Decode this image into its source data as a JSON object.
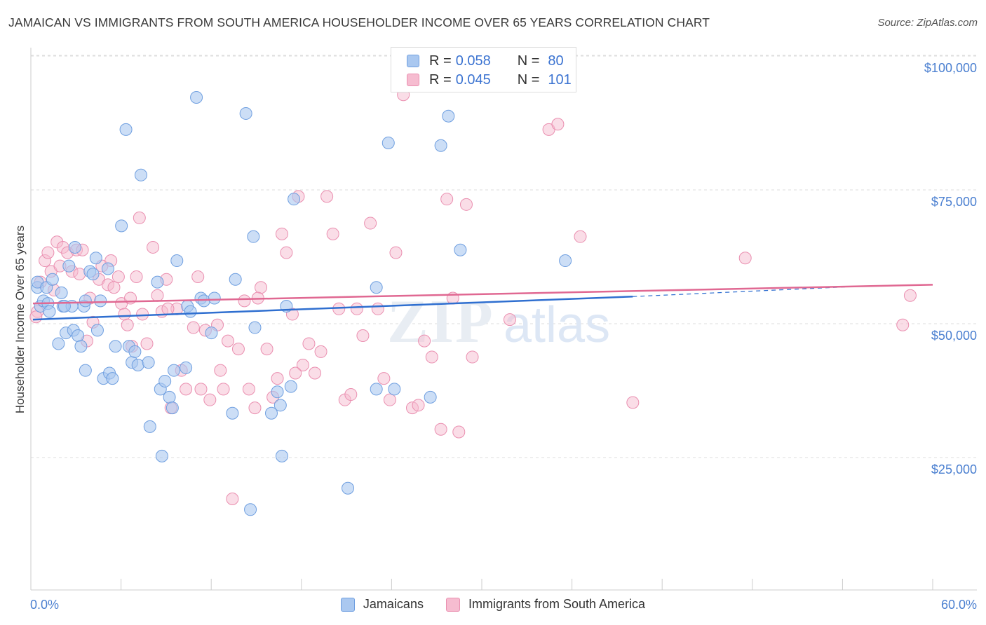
{
  "header": {
    "title": "JAMAICAN VS IMMIGRANTS FROM SOUTH AMERICA HOUSEHOLDER INCOME OVER 65 YEARS CORRELATION CHART",
    "source": "Source: ZipAtlas.com"
  },
  "legend": {
    "r_label": "R =",
    "n_label": "N =",
    "jamaicans": {
      "r": "0.058",
      "n": "80"
    },
    "immigrants": {
      "r": "0.045",
      "n": "101"
    }
  },
  "watermark": {
    "zip": "ZIP",
    "atlas": "atlas"
  },
  "bottom_legend": {
    "jamaicans": "Jamaicans",
    "immigrants": "Immigrants from South America"
  },
  "colors": {
    "blue_fill": "#aac8f0",
    "blue_stroke": "#6f9fe0",
    "blue_line": "#2f6fd0",
    "pink_fill": "#f6bcd0",
    "pink_stroke": "#ea8fb0",
    "pink_line": "#e06892",
    "tick_text": "#4a7fd0",
    "grid": "#dddddd"
  },
  "chart_data": {
    "type": "scatter",
    "title": "JAMAICAN VS IMMIGRANTS FROM SOUTH AMERICA HOUSEHOLDER INCOME OVER 65 YEARS CORRELATION CHART",
    "xlabel": "",
    "ylabel": "Householder Income Over 65 years",
    "xlim": [
      0,
      60
    ],
    "ylim": [
      0,
      105000
    ],
    "x_tick_labels": [
      "0.0%",
      "60.0%"
    ],
    "y_ticks": [
      25000,
      50000,
      75000,
      100000
    ],
    "y_tick_labels": [
      "$25,000",
      "$50,000",
      "$75,000",
      "$100,000"
    ],
    "grid": "horizontal dashed",
    "series": [
      {
        "name": "Jamaicans",
        "r": 0.058,
        "n": 80,
        "trend": {
          "x": [
            0,
            40
          ],
          "y": [
            53000,
            57300
          ],
          "dashed_to": [
            55,
            59200
          ]
        },
        "points": [
          [
            0.3,
            59000
          ],
          [
            0.3,
            60000
          ],
          [
            0.5,
            55500
          ],
          [
            0.7,
            56500
          ],
          [
            0.9,
            59000
          ],
          [
            1.0,
            56000
          ],
          [
            1.3,
            60500
          ],
          [
            1.7,
            48500
          ],
          [
            1.9,
            58000
          ],
          [
            2.0,
            55500
          ],
          [
            2.2,
            50500
          ],
          [
            2.4,
            63000
          ],
          [
            2.6,
            55500
          ],
          [
            2.7,
            51000
          ],
          [
            2.8,
            66500
          ],
          [
            3.0,
            50000
          ],
          [
            3.2,
            48000
          ],
          [
            3.4,
            55500
          ],
          [
            3.5,
            43500
          ],
          [
            3.8,
            62000
          ],
          [
            4.0,
            61500
          ],
          [
            4.2,
            64500
          ],
          [
            4.3,
            51000
          ],
          [
            4.5,
            56500
          ],
          [
            4.7,
            42000
          ],
          [
            5.0,
            62500
          ],
          [
            5.1,
            43000
          ],
          [
            5.3,
            42000
          ],
          [
            5.5,
            48000
          ],
          [
            5.9,
            70500
          ],
          [
            6.4,
            48000
          ],
          [
            6.6,
            45000
          ],
          [
            6.8,
            47000
          ],
          [
            7.0,
            44500
          ],
          [
            7.2,
            80000
          ],
          [
            7.7,
            45000
          ],
          [
            7.8,
            33000
          ],
          [
            8.3,
            60000
          ],
          [
            8.5,
            40000
          ],
          [
            8.6,
            27500
          ],
          [
            8.8,
            41500
          ],
          [
            9.1,
            38500
          ],
          [
            9.3,
            36500
          ],
          [
            9.4,
            43500
          ],
          [
            9.6,
            64000
          ],
          [
            10.2,
            44000
          ],
          [
            10.3,
            55500
          ],
          [
            10.5,
            54500
          ],
          [
            10.9,
            94500
          ],
          [
            11.2,
            57000
          ],
          [
            11.4,
            56500
          ],
          [
            11.9,
            50500
          ],
          [
            12.1,
            57000
          ],
          [
            13.3,
            35500
          ],
          [
            13.5,
            60500
          ],
          [
            14.2,
            91500
          ],
          [
            14.7,
            68500
          ],
          [
            14.8,
            51500
          ],
          [
            15.9,
            35500
          ],
          [
            16.3,
            39500
          ],
          [
            16.5,
            37000
          ],
          [
            16.6,
            27500
          ],
          [
            16.9,
            55500
          ],
          [
            17.2,
            40500
          ],
          [
            17.4,
            75500
          ],
          [
            21.0,
            21500
          ],
          [
            22.9,
            59000
          ],
          [
            22.9,
            40000
          ],
          [
            23.7,
            86000
          ],
          [
            24.1,
            40000
          ],
          [
            26.5,
            38500
          ],
          [
            27.2,
            85500
          ],
          [
            27.7,
            91000
          ],
          [
            28.5,
            66000
          ],
          [
            35.5,
            64000
          ],
          [
            14.5,
            17500
          ],
          [
            6.2,
            88500
          ],
          [
            3.5,
            56500
          ],
          [
            2.1,
            55500
          ],
          [
            1.1,
            54500
          ]
        ]
      },
      {
        "name": "Immigrants from South America",
        "r": 0.045,
        "n": 101,
        "trend": {
          "x": [
            0,
            60
          ],
          "y": [
            56000,
            59500
          ]
        },
        "points": [
          [
            0.3,
            54500
          ],
          [
            0.5,
            60000
          ],
          [
            0.8,
            64000
          ],
          [
            1.0,
            65500
          ],
          [
            1.2,
            62000
          ],
          [
            1.4,
            58500
          ],
          [
            1.6,
            67500
          ],
          [
            1.8,
            63000
          ],
          [
            2.0,
            66500
          ],
          [
            2.3,
            65500
          ],
          [
            2.6,
            62000
          ],
          [
            2.9,
            66000
          ],
          [
            3.1,
            61500
          ],
          [
            3.3,
            66000
          ],
          [
            3.6,
            49000
          ],
          [
            3.8,
            57000
          ],
          [
            4.0,
            52500
          ],
          [
            4.4,
            60500
          ],
          [
            4.6,
            63000
          ],
          [
            5.0,
            59500
          ],
          [
            5.2,
            64000
          ],
          [
            5.4,
            59000
          ],
          [
            5.7,
            61000
          ],
          [
            5.9,
            56000
          ],
          [
            6.1,
            54000
          ],
          [
            6.3,
            52000
          ],
          [
            6.6,
            48000
          ],
          [
            6.9,
            61000
          ],
          [
            7.1,
            72000
          ],
          [
            7.3,
            54000
          ],
          [
            7.6,
            48500
          ],
          [
            8.0,
            66500
          ],
          [
            8.3,
            57500
          ],
          [
            8.6,
            54500
          ],
          [
            8.9,
            60500
          ],
          [
            9.2,
            36500
          ],
          [
            9.6,
            55000
          ],
          [
            9.9,
            43500
          ],
          [
            10.2,
            40000
          ],
          [
            10.7,
            51500
          ],
          [
            11.0,
            61000
          ],
          [
            11.2,
            40000
          ],
          [
            11.5,
            51000
          ],
          [
            11.8,
            38000
          ],
          [
            12.3,
            52000
          ],
          [
            12.7,
            40000
          ],
          [
            13.0,
            49000
          ],
          [
            13.3,
            19500
          ],
          [
            13.7,
            47500
          ],
          [
            14.1,
            56500
          ],
          [
            14.4,
            40000
          ],
          [
            14.8,
            36500
          ],
          [
            15.2,
            59000
          ],
          [
            15.6,
            47500
          ],
          [
            16.0,
            38500
          ],
          [
            16.3,
            42000
          ],
          [
            16.6,
            69000
          ],
          [
            16.9,
            65500
          ],
          [
            17.3,
            54000
          ],
          [
            17.7,
            76000
          ],
          [
            18.0,
            44500
          ],
          [
            18.4,
            48500
          ],
          [
            18.8,
            43000
          ],
          [
            19.2,
            47000
          ],
          [
            19.6,
            76000
          ],
          [
            20.0,
            69000
          ],
          [
            20.4,
            55000
          ],
          [
            20.8,
            38000
          ],
          [
            21.2,
            39000
          ],
          [
            21.6,
            55000
          ],
          [
            22.0,
            50000
          ],
          [
            22.5,
            71000
          ],
          [
            23.0,
            55000
          ],
          [
            23.4,
            42000
          ],
          [
            23.8,
            38000
          ],
          [
            24.2,
            65500
          ],
          [
            24.7,
            95000
          ],
          [
            25.3,
            36500
          ],
          [
            25.7,
            37000
          ],
          [
            26.1,
            49000
          ],
          [
            26.6,
            46000
          ],
          [
            27.2,
            32500
          ],
          [
            27.6,
            75500
          ],
          [
            28.0,
            57000
          ],
          [
            28.4,
            32000
          ],
          [
            28.9,
            74500
          ],
          [
            29.3,
            46000
          ],
          [
            31.8,
            53000
          ],
          [
            34.4,
            88500
          ],
          [
            35.0,
            89500
          ],
          [
            36.5,
            68500
          ],
          [
            40.0,
            37500
          ],
          [
            47.5,
            64500
          ],
          [
            58.0,
            52000
          ],
          [
            58.5,
            57500
          ],
          [
            0.2,
            53500
          ],
          [
            12.5,
            43500
          ],
          [
            15.0,
            57000
          ],
          [
            17.5,
            43000
          ],
          [
            6.5,
            57000
          ],
          [
            9.0,
            55000
          ]
        ]
      }
    ]
  }
}
